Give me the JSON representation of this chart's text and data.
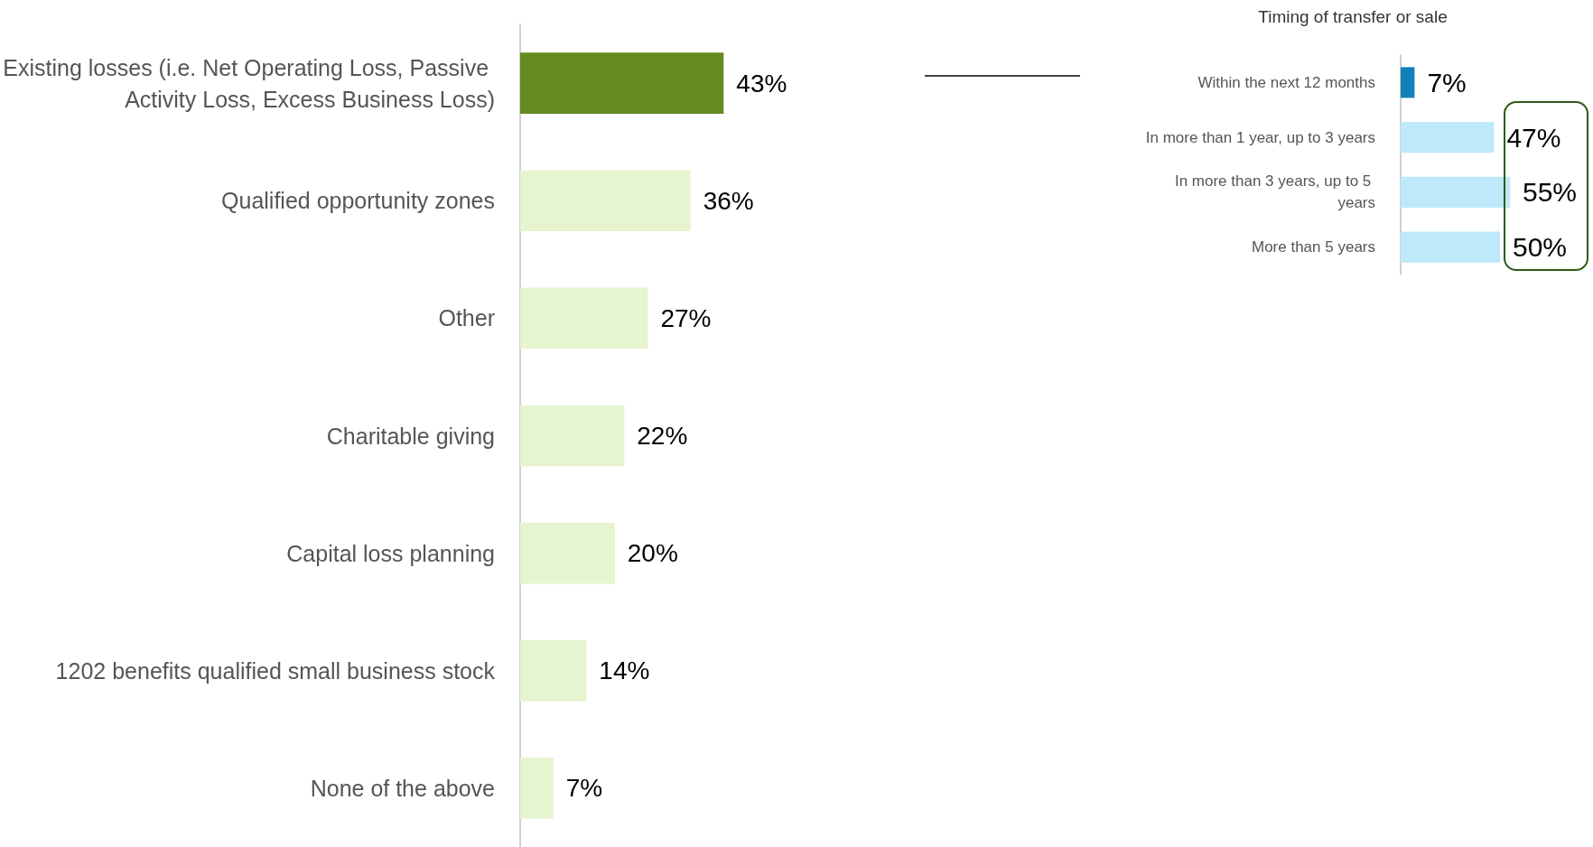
{
  "chart_data": [
    {
      "type": "bar",
      "orientation": "horizontal",
      "categories": [
        "Existing losses (i.e. Net Operating Loss, Passive Activity Loss, Excess Business Loss)",
        "Qualified opportunity zones",
        "Other",
        "Charitable giving",
        "Capital loss planning",
        "1202 benefits qualified small business stock",
        "None of the above"
      ],
      "values": [
        43,
        36,
        27,
        22,
        20,
        14,
        7
      ],
      "colors": [
        "#668b1e",
        "#e6f4d0",
        "#e6f4d0",
        "#e6f4d0",
        "#e6f4d0",
        "#e6f4d0",
        "#e6f4d0"
      ],
      "value_labels": [
        "43%",
        "36%",
        "27%",
        "22%",
        "20%",
        "14%",
        "7%"
      ]
    },
    {
      "type": "bar",
      "orientation": "horizontal",
      "title": "Timing of transfer or sale",
      "categories": [
        "Within the next 12 months",
        "In more than 1 year, up to 3 years",
        "In more than 3 years, up to 5 years",
        "More than 5 years"
      ],
      "values": [
        7,
        47,
        55,
        50
      ],
      "colors": [
        "#1380b8",
        "#bde9fb",
        "#bde9fb",
        "#bde9fb"
      ],
      "value_labels": [
        "7%",
        "47%",
        "55%",
        "50%"
      ]
    }
  ]
}
